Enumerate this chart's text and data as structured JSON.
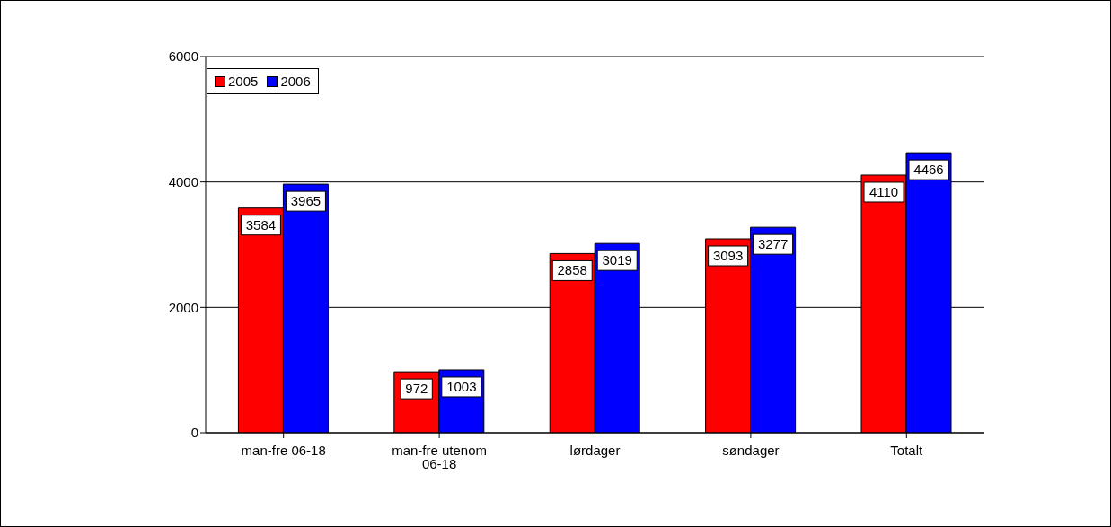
{
  "chart_data": {
    "type": "bar",
    "categories": [
      "man-fre 06-18",
      "man-fre utenom 06-18",
      "lørdager",
      "søndager",
      "Totalt"
    ],
    "series": [
      {
        "name": "2005",
        "color": "#ff0000",
        "values": [
          3584,
          972,
          2858,
          3093,
          4110
        ]
      },
      {
        "name": "2006",
        "color": "#0000ff",
        "values": [
          3965,
          1003,
          3019,
          3277,
          4466
        ]
      }
    ],
    "ylim": [
      0,
      6000
    ],
    "yticks": [
      0,
      2000,
      4000,
      6000
    ],
    "grid": "y",
    "legend": "top",
    "data_labels": true
  }
}
